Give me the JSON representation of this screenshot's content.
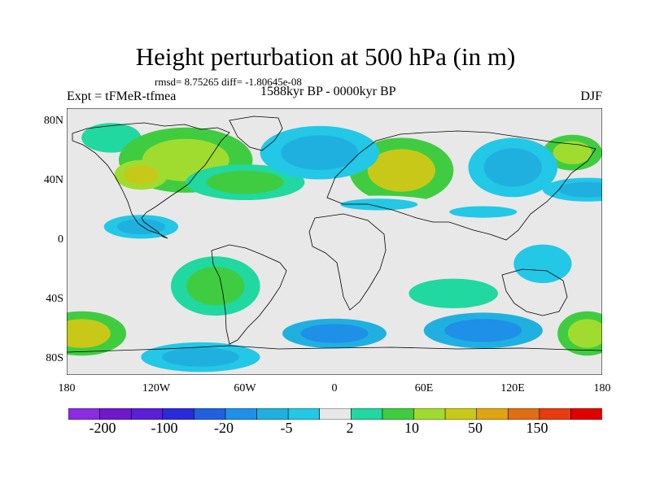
{
  "header": {
    "title": "Height perturbation at 500 hPa (in m)",
    "stats": "rmsd= 8.75265 diff= -1.80645e-08",
    "experiment": "Expt = tFMeR-tfmea",
    "period": "1588kyr BP - 0000kyr BP",
    "season": "DJF"
  },
  "axes": {
    "lat_labels": [
      "80N",
      "40N",
      "0",
      "40S",
      "80S"
    ],
    "lon_labels": [
      "180",
      "120W",
      "60W",
      "0",
      "60E",
      "120E",
      "180"
    ]
  },
  "colorbar": {
    "labels": [
      "-200",
      "-100",
      "-20",
      "-5",
      "2",
      "10",
      "50",
      "150"
    ],
    "colors": [
      "#8a2be2",
      "#7018cc",
      "#5a20d6",
      "#2a2ad8",
      "#2060e0",
      "#1e90e8",
      "#1fb0e0",
      "#22c8e6",
      "#e8e8e8",
      "#20d8a0",
      "#40cc40",
      "#a0dc30",
      "#c8c818",
      "#e0a410",
      "#e06c14",
      "#e83c10",
      "#e00000"
    ]
  },
  "chart_data": {
    "type": "heatmap",
    "title": "Height perturbation at 500 hPa (in m)",
    "season": "DJF",
    "xlim": [
      -180,
      180
    ],
    "ylim": [
      -90,
      90
    ],
    "levels": [
      -200,
      -100,
      -20,
      -5,
      2,
      10,
      50,
      150
    ],
    "anomalies": [
      {
        "lon": -150,
        "lat": 70,
        "rx": 20,
        "ry": 10,
        "value": 8
      },
      {
        "lon": -100,
        "lat": 55,
        "rx": 45,
        "ry": 22,
        "value": 22
      },
      {
        "lon": -60,
        "lat": 40,
        "rx": 40,
        "ry": 12,
        "value": 18
      },
      {
        "lon": -130,
        "lat": 45,
        "rx": 18,
        "ry": 10,
        "value": 40
      },
      {
        "lon": 45,
        "lat": 48,
        "rx": 35,
        "ry": 22,
        "value": 35
      },
      {
        "lon": 160,
        "lat": 60,
        "rx": 20,
        "ry": 12,
        "value": 25
      },
      {
        "lon": -40,
        "lat": 80,
        "rx": 30,
        "ry": 8,
        "value": -2
      },
      {
        "lon": -10,
        "lat": 60,
        "rx": 40,
        "ry": 18,
        "value": -8
      },
      {
        "lon": 120,
        "lat": 50,
        "rx": 30,
        "ry": 20,
        "value": -7
      },
      {
        "lon": 170,
        "lat": 35,
        "rx": 30,
        "ry": 8,
        "value": -5
      },
      {
        "lon": 30,
        "lat": 25,
        "rx": 40,
        "ry": 6,
        "value": -4
      },
      {
        "lon": 100,
        "lat": 20,
        "rx": 35,
        "ry": 6,
        "value": -3
      },
      {
        "lon": -130,
        "lat": 10,
        "rx": 25,
        "ry": 8,
        "value": -5
      },
      {
        "lon": -80,
        "lat": -30,
        "rx": 30,
        "ry": 20,
        "value": 10
      },
      {
        "lon": -170,
        "lat": -62,
        "rx": 30,
        "ry": 15,
        "value": 30
      },
      {
        "lon": 170,
        "lat": -62,
        "rx": 20,
        "ry": 15,
        "value": 28
      },
      {
        "lon": 0,
        "lat": -62,
        "rx": 35,
        "ry": 10,
        "value": -15
      },
      {
        "lon": 100,
        "lat": -60,
        "rx": 40,
        "ry": 12,
        "value": -10
      },
      {
        "lon": -90,
        "lat": -78,
        "rx": 40,
        "ry": 10,
        "value": -8
      },
      {
        "lon": 80,
        "lat": -35,
        "rx": 30,
        "ry": 10,
        "value": 6
      },
      {
        "lon": 140,
        "lat": -15,
        "rx": 30,
        "ry": 20,
        "value": -3
      }
    ]
  }
}
